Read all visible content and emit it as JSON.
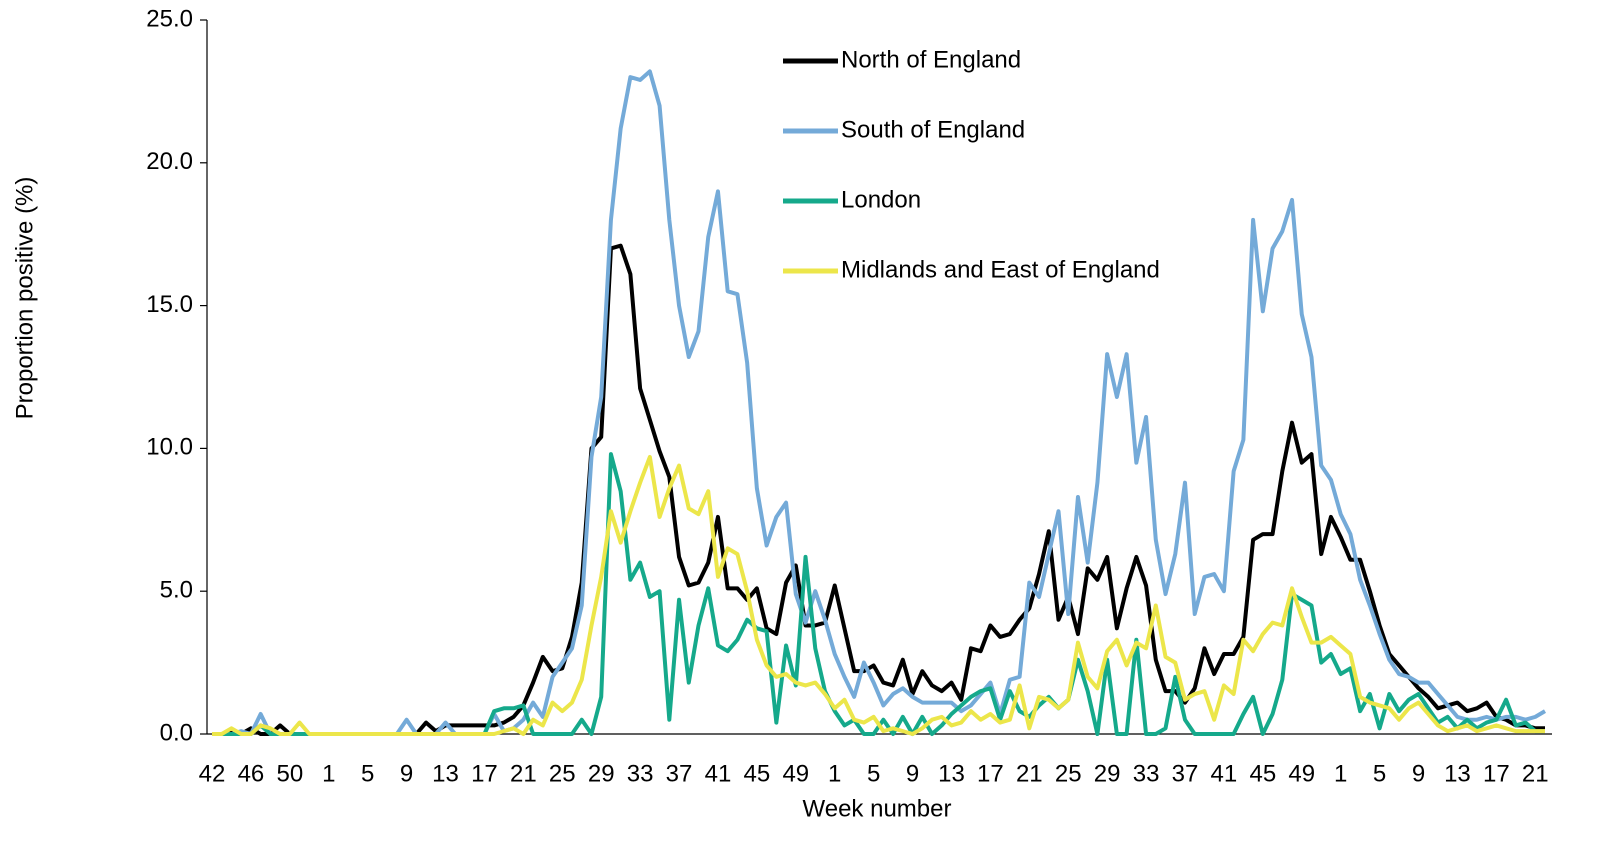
{
  "chart_data": {
    "type": "line",
    "x_label": "Week number",
    "y_label": "Proportion positive (%)",
    "categories": [
      "42",
      null,
      null,
      null,
      "46",
      null,
      null,
      null,
      "50",
      null,
      null,
      null,
      "1",
      null,
      null,
      null,
      "5",
      null,
      null,
      null,
      "9",
      null,
      null,
      null,
      "13",
      null,
      null,
      null,
      "17",
      null,
      null,
      null,
      "21",
      null,
      null,
      null,
      "25",
      null,
      null,
      null,
      "29",
      null,
      null,
      null,
      "33",
      null,
      null,
      null,
      "37",
      null,
      null,
      null,
      "41",
      null,
      null,
      null,
      "45",
      null,
      null,
      null,
      "49",
      null,
      null,
      null,
      "1",
      null,
      null,
      null,
      "5",
      null,
      null,
      null,
      "9",
      null,
      null,
      null,
      "13",
      null,
      null,
      null,
      "17",
      null,
      null,
      null,
      "21",
      null,
      null,
      null,
      "25",
      null,
      null,
      null,
      "29",
      null,
      null,
      null,
      "33",
      null,
      null,
      null,
      "37",
      null,
      null,
      null,
      "41",
      null,
      null,
      null,
      "45",
      null,
      null,
      null,
      "49",
      null,
      null,
      null,
      "1",
      null,
      null,
      null,
      "5",
      null,
      null,
      null,
      "9",
      null,
      null,
      null,
      "13",
      null,
      null,
      null,
      "17",
      null,
      null,
      null,
      "21",
      null
    ],
    "ylim": [
      0,
      25
    ],
    "yticks": [
      {
        "value": 0,
        "label": "0.0"
      },
      {
        "value": 5,
        "label": "5.0"
      },
      {
        "value": 10,
        "label": "10.0"
      },
      {
        "value": 15,
        "label": "15.0"
      },
      {
        "value": 20,
        "label": "20.0"
      },
      {
        "value": 25,
        "label": "25.0"
      }
    ],
    "series": [
      {
        "name": "North of England",
        "color": "#000000",
        "values": [
          0,
          0,
          0.1,
          0,
          0.2,
          0,
          0,
          0.3,
          0,
          0,
          0,
          0,
          0,
          0,
          0,
          0,
          0,
          0,
          0,
          0,
          0,
          0,
          0.4,
          0.1,
          0.3,
          0.3,
          0.3,
          0.3,
          0.3,
          0.3,
          0.4,
          0.6,
          1.0,
          1.8,
          2.7,
          2.2,
          2.3,
          3.4,
          5.3,
          10.0,
          10.4,
          17.0,
          17.1,
          16.1,
          12.1,
          11.0,
          9.9,
          9.0,
          6.2,
          5.2,
          5.3,
          6.0,
          7.6,
          5.1,
          5.1,
          4.7,
          5.1,
          3.7,
          3.5,
          5.3,
          5.9,
          3.8,
          3.8,
          3.9,
          5.2,
          3.7,
          2.2,
          2.2,
          2.4,
          1.8,
          1.7,
          2.6,
          1.4,
          2.2,
          1.7,
          1.5,
          1.8,
          1.2,
          3.0,
          2.9,
          3.8,
          3.4,
          3.5,
          4.0,
          4.4,
          5.6,
          7.1,
          4.0,
          4.8,
          3.5,
          5.8,
          5.4,
          6.2,
          3.7,
          5.1,
          6.2,
          5.2,
          2.6,
          1.5,
          1.5,
          1.1,
          1.6,
          3.0,
          2.1,
          2.8,
          2.8,
          3.4,
          6.8,
          7.0,
          7.0,
          9.2,
          10.9,
          9.5,
          9.8,
          6.3,
          7.6,
          6.9,
          6.1,
          6.1,
          5.0,
          3.8,
          2.8,
          2.4,
          2.0,
          1.6,
          1.3,
          0.9,
          1.0,
          1.1,
          0.8,
          0.9,
          1.1,
          0.6,
          0.5,
          0.3,
          0.3,
          0.2,
          0.2
        ]
      },
      {
        "name": "South of England",
        "color": "#74aad8",
        "values": [
          0,
          0,
          0,
          0.1,
          0,
          0.7,
          0,
          0,
          0,
          0,
          0,
          0,
          0,
          0,
          0,
          0,
          0,
          0,
          0,
          0,
          0.5,
          0,
          0,
          0,
          0.4,
          0,
          0,
          0,
          0,
          0.7,
          0.1,
          0.2,
          0.5,
          1.1,
          0.6,
          2.0,
          2.5,
          3.0,
          4.5,
          9.7,
          11.8,
          18.0,
          21.2,
          23.0,
          22.9,
          23.2,
          22.0,
          18.0,
          15.0,
          13.2,
          14.1,
          17.4,
          19.0,
          15.5,
          15.4,
          13.0,
          8.6,
          6.6,
          7.6,
          8.1,
          4.9,
          3.9,
          5.0,
          4.0,
          2.8,
          2.0,
          1.3,
          2.5,
          1.8,
          1.0,
          1.4,
          1.6,
          1.3,
          1.1,
          1.1,
          1.1,
          1.1,
          0.8,
          1.0,
          1.4,
          1.8,
          0.7,
          1.9,
          2.0,
          5.3,
          4.8,
          6.3,
          7.8,
          4.2,
          8.3,
          6.0,
          8.8,
          13.3,
          11.8,
          13.3,
          9.5,
          11.1,
          6.8,
          4.9,
          6.3,
          8.8,
          4.2,
          5.5,
          5.6,
          5.0,
          9.2,
          10.3,
          18.0,
          14.8,
          17.0,
          17.6,
          18.7,
          14.7,
          13.2,
          9.4,
          8.9,
          7.7,
          7.0,
          5.4,
          4.5,
          3.5,
          2.6,
          2.1,
          2.0,
          1.8,
          1.8,
          1.4,
          1.0,
          0.6,
          0.5,
          0.5,
          0.6,
          0.5,
          0.6,
          0.6,
          0.5,
          0.6,
          0.8
        ]
      },
      {
        "name": "London",
        "color": "#15a98b",
        "values": [
          0,
          0,
          0,
          0,
          0,
          0.3,
          0,
          0,
          0,
          0,
          0,
          0,
          0,
          0,
          0,
          0,
          0,
          0,
          0,
          0,
          0,
          0,
          0,
          0,
          0,
          0,
          0,
          0,
          0,
          0.8,
          0.9,
          0.9,
          1.0,
          0,
          0,
          0,
          0,
          0,
          0.5,
          0,
          1.3,
          9.8,
          8.5,
          5.4,
          6.0,
          4.8,
          5.0,
          0.5,
          4.7,
          1.8,
          3.8,
          5.1,
          3.1,
          2.9,
          3.3,
          4.0,
          3.7,
          3.6,
          0.4,
          3.1,
          1.7,
          6.2,
          3.0,
          1.5,
          0.8,
          0.3,
          0.5,
          0,
          0,
          0.5,
          0,
          0.6,
          0,
          0.6,
          0,
          0.3,
          0.7,
          1.0,
          1.3,
          1.5,
          1.6,
          0.5,
          1.5,
          0.8,
          0.6,
          1.0,
          1.3,
          0.9,
          1.2,
          2.6,
          1.5,
          0,
          2.6,
          0,
          0,
          3.3,
          0,
          0,
          0.2,
          2.0,
          0.5,
          0,
          0,
          0,
          0,
          0,
          0.7,
          1.3,
          0,
          0.7,
          1.9,
          4.9,
          4.7,
          4.5,
          2.5,
          2.8,
          2.1,
          2.3,
          0.8,
          1.4,
          0.2,
          1.4,
          0.8,
          1.2,
          1.4,
          0.9,
          0.4,
          0.6,
          0.2,
          0.5,
          0.2,
          0.4,
          0.5,
          1.2,
          0.3,
          0.4,
          0.1,
          0.1
        ]
      },
      {
        "name": "Midlands and East of England",
        "color": "#ece64a",
        "values": [
          0,
          0,
          0.2,
          0,
          0,
          0.3,
          0.2,
          0,
          0,
          0.4,
          0,
          0,
          0,
          0,
          0,
          0,
          0,
          0,
          0,
          0,
          0,
          0,
          0,
          0,
          0,
          0,
          0,
          0,
          0,
          0,
          0.1,
          0.2,
          0,
          0.5,
          0.3,
          1.1,
          0.8,
          1.1,
          1.9,
          3.8,
          5.5,
          7.8,
          6.7,
          7.8,
          8.8,
          9.7,
          7.6,
          8.6,
          9.4,
          7.9,
          7.7,
          8.5,
          5.5,
          6.5,
          6.3,
          5.0,
          3.3,
          2.4,
          2.0,
          2.1,
          1.8,
          1.7,
          1.8,
          1.4,
          0.9,
          1.2,
          0.5,
          0.4,
          0.6,
          0.1,
          0.2,
          0.1,
          0,
          0.2,
          0.5,
          0.6,
          0.3,
          0.4,
          0.8,
          0.5,
          0.7,
          0.4,
          0.5,
          1.7,
          0.2,
          1.3,
          1.2,
          0.9,
          1.2,
          3.2,
          2.0,
          1.6,
          2.9,
          3.3,
          2.4,
          3.2,
          3.0,
          4.5,
          2.7,
          2.5,
          1.2,
          1.4,
          1.5,
          0.5,
          1.7,
          1.4,
          3.3,
          2.9,
          3.5,
          3.9,
          3.8,
          5.1,
          4.1,
          3.2,
          3.2,
          3.4,
          3.1,
          2.8,
          1.3,
          1.1,
          1.0,
          0.9,
          0.5,
          0.9,
          1.1,
          0.7,
          0.3,
          0.1,
          0.2,
          0.3,
          0.1,
          0.2,
          0.3,
          0.2,
          0.1,
          0.1,
          0.1,
          0.1
        ]
      }
    ]
  }
}
